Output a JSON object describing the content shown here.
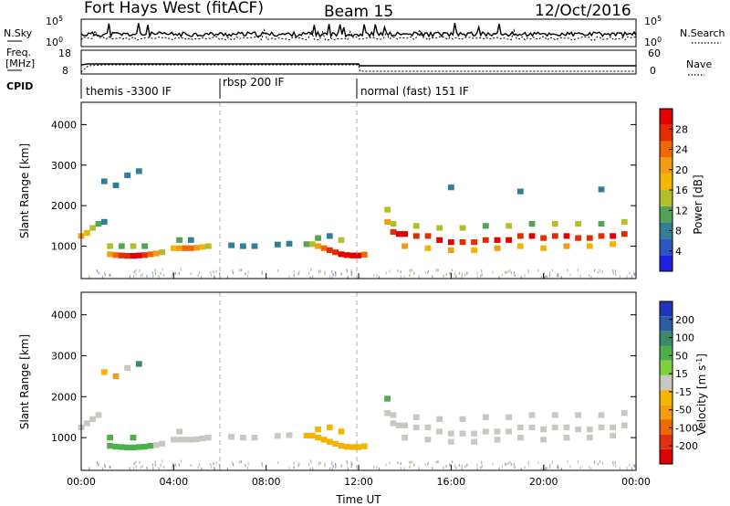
{
  "header": {
    "station": "Fort Hays West (fitACF)",
    "beam": "Beam 15",
    "date": "12/Oct/2016"
  },
  "strip_panels": {
    "nsky_label": "N.Sky",
    "nsearch_label": "N.Search",
    "nsky_ticks": [
      "10^5",
      "10^0"
    ],
    "nsearch_ticks": [
      "10^5",
      "10^0"
    ],
    "freq_label_1": "Freq.",
    "freq_label_2": "[MHz]",
    "freq_ticks": [
      "18",
      "8"
    ],
    "nave_label": "Nave",
    "nave_ticks": [
      "60",
      "0"
    ],
    "cpid_label": "CPID",
    "cpid_modes": [
      {
        "label": "themis -3300 IF",
        "start": "00:00",
        "end": "06:00"
      },
      {
        "label": "rbsp 200 IF",
        "start": "06:00",
        "end": "12:00"
      },
      {
        "label": "normal (fast) 151 IF",
        "start": "12:00",
        "end": "24:00"
      }
    ]
  },
  "chart_data": [
    {
      "type": "heatmap",
      "panel": "power",
      "xlabel": "Time UT",
      "ylabel": "Slant Range [km]",
      "colorbar_label": "Power [dB]",
      "x_ticks": [
        "00:00",
        "04:00",
        "08:00",
        "12:00",
        "16:00",
        "20:00",
        "00:00"
      ],
      "y_ticks": [
        "1000",
        "2000",
        "3000",
        "4000"
      ],
      "xlim": [
        0,
        24
      ],
      "ylim": [
        200,
        4550
      ],
      "colorbar_ticks": [
        "4",
        "8",
        "12",
        "16",
        "20",
        "24",
        "28"
      ],
      "colorbar_colors": [
        "#1f1fe0",
        "#2b57c0",
        "#2f7f98",
        "#54a255",
        "#b3bf2a",
        "#f5b400",
        "#f39c12",
        "#ee6a00",
        "#e52b00",
        "#e00000"
      ],
      "cells": [
        {
          "t": 0.0,
          "r": 1250,
          "v": 18
        },
        {
          "t": 0.25,
          "r": 1330,
          "v": 16
        },
        {
          "t": 0.5,
          "r": 1450,
          "v": 12
        },
        {
          "t": 0.75,
          "r": 1550,
          "v": 10
        },
        {
          "t": 1.0,
          "r": 1600,
          "v": 8
        },
        {
          "t": 1.25,
          "r": 800,
          "v": 20
        },
        {
          "t": 1.5,
          "r": 780,
          "v": 22
        },
        {
          "t": 1.75,
          "r": 770,
          "v": 24
        },
        {
          "t": 2.0,
          "r": 760,
          "v": 26
        },
        {
          "t": 2.25,
          "r": 760,
          "v": 28
        },
        {
          "t": 2.5,
          "r": 770,
          "v": 28
        },
        {
          "t": 2.75,
          "r": 780,
          "v": 26
        },
        {
          "t": 3.0,
          "r": 800,
          "v": 22
        },
        {
          "t": 3.25,
          "r": 820,
          "v": 18
        },
        {
          "t": 3.5,
          "r": 850,
          "v": 14
        },
        {
          "t": 1.25,
          "r": 1000,
          "v": 12
        },
        {
          "t": 1.75,
          "r": 1000,
          "v": 10
        },
        {
          "t": 2.25,
          "r": 1000,
          "v": 12
        },
        {
          "t": 2.75,
          "r": 1000,
          "v": 10
        },
        {
          "t": 1.0,
          "r": 2600,
          "v": 6
        },
        {
          "t": 1.5,
          "r": 2500,
          "v": 6
        },
        {
          "t": 2.0,
          "r": 2750,
          "v": 8
        },
        {
          "t": 2.5,
          "r": 2850,
          "v": 6
        },
        {
          "t": 4.0,
          "r": 950,
          "v": 16
        },
        {
          "t": 4.25,
          "r": 950,
          "v": 20
        },
        {
          "t": 4.5,
          "r": 950,
          "v": 22
        },
        {
          "t": 4.75,
          "r": 950,
          "v": 22
        },
        {
          "t": 5.0,
          "r": 960,
          "v": 20
        },
        {
          "t": 5.25,
          "r": 980,
          "v": 16
        },
        {
          "t": 5.5,
          "r": 1000,
          "v": 12
        },
        {
          "t": 4.25,
          "r": 1150,
          "v": 10
        },
        {
          "t": 4.75,
          "r": 1150,
          "v": 8
        },
        {
          "t": 6.5,
          "r": 1020,
          "v": 8
        },
        {
          "t": 7.0,
          "r": 1000,
          "v": 6
        },
        {
          "t": 7.5,
          "r": 1000,
          "v": 6
        },
        {
          "t": 8.5,
          "r": 1040,
          "v": 6
        },
        {
          "t": 9.0,
          "r": 1060,
          "v": 6
        },
        {
          "t": 9.75,
          "r": 1050,
          "v": 10
        },
        {
          "t": 10.0,
          "r": 1050,
          "v": 14
        },
        {
          "t": 10.25,
          "r": 1000,
          "v": 18
        },
        {
          "t": 10.5,
          "r": 950,
          "v": 22
        },
        {
          "t": 10.75,
          "r": 900,
          "v": 24
        },
        {
          "t": 11.0,
          "r": 850,
          "v": 26
        },
        {
          "t": 11.25,
          "r": 800,
          "v": 28
        },
        {
          "t": 11.5,
          "r": 780,
          "v": 30
        },
        {
          "t": 11.75,
          "r": 770,
          "v": 30
        },
        {
          "t": 12.0,
          "r": 770,
          "v": 28
        },
        {
          "t": 12.25,
          "r": 790,
          "v": 22
        },
        {
          "t": 10.25,
          "r": 1200,
          "v": 10
        },
        {
          "t": 10.75,
          "r": 1250,
          "v": 8
        },
        {
          "t": 11.25,
          "r": 1150,
          "v": 12
        },
        {
          "t": 13.25,
          "r": 1600,
          "v": 18
        },
        {
          "t": 13.25,
          "r": 1900,
          "v": 14
        },
        {
          "t": 13.5,
          "r": 1350,
          "v": 26
        },
        {
          "t": 13.75,
          "r": 1300,
          "v": 28
        },
        {
          "t": 14.0,
          "r": 1300,
          "v": 28
        },
        {
          "t": 14.5,
          "r": 1250,
          "v": 26
        },
        {
          "t": 15.0,
          "r": 1250,
          "v": 26
        },
        {
          "t": 15.5,
          "r": 1150,
          "v": 28
        },
        {
          "t": 16.0,
          "r": 1100,
          "v": 28
        },
        {
          "t": 16.5,
          "r": 1100,
          "v": 26
        },
        {
          "t": 17.0,
          "r": 1100,
          "v": 26
        },
        {
          "t": 17.5,
          "r": 1150,
          "v": 26
        },
        {
          "t": 18.0,
          "r": 1150,
          "v": 28
        },
        {
          "t": 18.5,
          "r": 1150,
          "v": 28
        },
        {
          "t": 19.0,
          "r": 1250,
          "v": 26
        },
        {
          "t": 19.5,
          "r": 1250,
          "v": 28
        },
        {
          "t": 20.0,
          "r": 1200,
          "v": 26
        },
        {
          "t": 20.5,
          "r": 1250,
          "v": 26
        },
        {
          "t": 21.0,
          "r": 1250,
          "v": 28
        },
        {
          "t": 21.5,
          "r": 1200,
          "v": 26
        },
        {
          "t": 22.0,
          "r": 1200,
          "v": 26
        },
        {
          "t": 22.5,
          "r": 1250,
          "v": 26
        },
        {
          "t": 23.0,
          "r": 1250,
          "v": 28
        },
        {
          "t": 23.5,
          "r": 1300,
          "v": 26
        },
        {
          "t": 13.5,
          "r": 1550,
          "v": 14
        },
        {
          "t": 14.5,
          "r": 1500,
          "v": 12
        },
        {
          "t": 15.5,
          "r": 1450,
          "v": 12
        },
        {
          "t": 16.5,
          "r": 1450,
          "v": 12
        },
        {
          "t": 17.5,
          "r": 1500,
          "v": 10
        },
        {
          "t": 18.5,
          "r": 1500,
          "v": 12
        },
        {
          "t": 19.5,
          "r": 1550,
          "v": 10
        },
        {
          "t": 20.5,
          "r": 1550,
          "v": 12
        },
        {
          "t": 21.5,
          "r": 1550,
          "v": 12
        },
        {
          "t": 22.5,
          "r": 1550,
          "v": 10
        },
        {
          "t": 23.5,
          "r": 1600,
          "v": 12
        },
        {
          "t": 14.0,
          "r": 1000,
          "v": 18
        },
        {
          "t": 15.0,
          "r": 950,
          "v": 16
        },
        {
          "t": 16.0,
          "r": 900,
          "v": 18
        },
        {
          "t": 17.0,
          "r": 900,
          "v": 16
        },
        {
          "t": 18.0,
          "r": 950,
          "v": 18
        },
        {
          "t": 19.0,
          "r": 1000,
          "v": 16
        },
        {
          "t": 20.0,
          "r": 950,
          "v": 16
        },
        {
          "t": 21.0,
          "r": 1000,
          "v": 18
        },
        {
          "t": 22.0,
          "r": 1000,
          "v": 16
        },
        {
          "t": 23.0,
          "r": 1050,
          "v": 16
        },
        {
          "t": 16.0,
          "r": 2450,
          "v": 6
        },
        {
          "t": 19.0,
          "r": 2350,
          "v": 6
        },
        {
          "t": 22.5,
          "r": 2400,
          "v": 6
        }
      ]
    },
    {
      "type": "heatmap",
      "panel": "velocity",
      "xlabel": "Time UT",
      "ylabel": "Slant Range [km]",
      "colorbar_label": "Velocity [m s^-1]",
      "x_ticks": [
        "00:00",
        "04:00",
        "08:00",
        "12:00",
        "16:00",
        "20:00",
        "00:00"
      ],
      "y_ticks": [
        "1000",
        "2000",
        "3000",
        "4000"
      ],
      "xlim": [
        0,
        24
      ],
      "ylim": [
        200,
        4550
      ],
      "colorbar_ticks": [
        "200",
        "100",
        "50",
        "15",
        "-15",
        "-50",
        "-100",
        "-200"
      ],
      "colorbar_colors": [
        "#2233bb",
        "#2d5ca6",
        "#3a8a6a",
        "#4bb04b",
        "#7dd13b",
        "#c8c8c0",
        "#f5b400",
        "#f39c12",
        "#ee6a00",
        "#e03010",
        "#dd0000"
      ],
      "cells": [
        {
          "t": 0.0,
          "r": 1250,
          "v": 0
        },
        {
          "t": 0.25,
          "r": 1350,
          "v": 0
        },
        {
          "t": 0.5,
          "r": 1450,
          "v": 0
        },
        {
          "t": 0.75,
          "r": 1550,
          "v": 0
        },
        {
          "t": 1.25,
          "r": 800,
          "v": 30
        },
        {
          "t": 1.5,
          "r": 780,
          "v": 30
        },
        {
          "t": 1.75,
          "r": 770,
          "v": 35
        },
        {
          "t": 2.0,
          "r": 760,
          "v": 30
        },
        {
          "t": 2.25,
          "r": 760,
          "v": 40
        },
        {
          "t": 2.5,
          "r": 770,
          "v": 30
        },
        {
          "t": 2.75,
          "r": 780,
          "v": 35
        },
        {
          "t": 3.0,
          "r": 800,
          "v": 30
        },
        {
          "t": 3.25,
          "r": 820,
          "v": 0
        },
        {
          "t": 3.5,
          "r": 850,
          "v": 0
        },
        {
          "t": 1.25,
          "r": 1000,
          "v": 30
        },
        {
          "t": 2.25,
          "r": 1000,
          "v": 30
        },
        {
          "t": 1.0,
          "r": 2600,
          "v": -40
        },
        {
          "t": 1.5,
          "r": 2500,
          "v": -60
        },
        {
          "t": 2.0,
          "r": 2700,
          "v": 0
        },
        {
          "t": 2.5,
          "r": 2800,
          "v": 60
        },
        {
          "t": 4.0,
          "r": 950,
          "v": 0
        },
        {
          "t": 4.25,
          "r": 950,
          "v": 0
        },
        {
          "t": 4.5,
          "r": 950,
          "v": 0
        },
        {
          "t": 4.75,
          "r": 950,
          "v": 0
        },
        {
          "t": 5.0,
          "r": 960,
          "v": 0
        },
        {
          "t": 5.25,
          "r": 980,
          "v": 0
        },
        {
          "t": 5.5,
          "r": 1000,
          "v": 0
        },
        {
          "t": 4.25,
          "r": 1150,
          "v": 0
        },
        {
          "t": 6.5,
          "r": 1020,
          "v": 0
        },
        {
          "t": 7.0,
          "r": 1000,
          "v": 0
        },
        {
          "t": 7.5,
          "r": 1000,
          "v": 0
        },
        {
          "t": 8.5,
          "r": 1040,
          "v": 0
        },
        {
          "t": 9.0,
          "r": 1060,
          "v": 0
        },
        {
          "t": 9.75,
          "r": 1050,
          "v": -30
        },
        {
          "t": 10.0,
          "r": 1050,
          "v": -30
        },
        {
          "t": 10.25,
          "r": 1000,
          "v": -30
        },
        {
          "t": 10.5,
          "r": 950,
          "v": -35
        },
        {
          "t": 10.75,
          "r": 900,
          "v": -30
        },
        {
          "t": 11.0,
          "r": 850,
          "v": -30
        },
        {
          "t": 11.25,
          "r": 800,
          "v": -30
        },
        {
          "t": 11.5,
          "r": 780,
          "v": -35
        },
        {
          "t": 11.75,
          "r": 770,
          "v": -30
        },
        {
          "t": 12.0,
          "r": 770,
          "v": -30
        },
        {
          "t": 12.25,
          "r": 790,
          "v": -30
        },
        {
          "t": 10.25,
          "r": 1200,
          "v": -30
        },
        {
          "t": 10.75,
          "r": 1250,
          "v": -30
        },
        {
          "t": 11.25,
          "r": 1150,
          "v": -30
        },
        {
          "t": 13.25,
          "r": 1600,
          "v": 0
        },
        {
          "t": 13.25,
          "r": 1950,
          "v": 30
        },
        {
          "t": 13.5,
          "r": 1350,
          "v": 0
        },
        {
          "t": 13.75,
          "r": 1300,
          "v": 0
        },
        {
          "t": 14.0,
          "r": 1300,
          "v": 0
        },
        {
          "t": 14.5,
          "r": 1250,
          "v": 0
        },
        {
          "t": 15.0,
          "r": 1250,
          "v": 0
        },
        {
          "t": 15.5,
          "r": 1150,
          "v": 0
        },
        {
          "t": 16.0,
          "r": 1100,
          "v": 0
        },
        {
          "t": 16.5,
          "r": 1100,
          "v": 0
        },
        {
          "t": 17.0,
          "r": 1100,
          "v": 0
        },
        {
          "t": 17.5,
          "r": 1150,
          "v": 0
        },
        {
          "t": 18.0,
          "r": 1150,
          "v": 0
        },
        {
          "t": 18.5,
          "r": 1150,
          "v": 0
        },
        {
          "t": 19.0,
          "r": 1250,
          "v": 0
        },
        {
          "t": 19.5,
          "r": 1250,
          "v": 0
        },
        {
          "t": 20.0,
          "r": 1200,
          "v": 0
        },
        {
          "t": 20.5,
          "r": 1250,
          "v": 0
        },
        {
          "t": 21.0,
          "r": 1250,
          "v": 0
        },
        {
          "t": 21.5,
          "r": 1200,
          "v": 0
        },
        {
          "t": 22.0,
          "r": 1200,
          "v": 0
        },
        {
          "t": 22.5,
          "r": 1250,
          "v": 0
        },
        {
          "t": 23.0,
          "r": 1250,
          "v": 0
        },
        {
          "t": 23.5,
          "r": 1300,
          "v": 0
        },
        {
          "t": 13.5,
          "r": 1550,
          "v": 0
        },
        {
          "t": 14.5,
          "r": 1500,
          "v": 0
        },
        {
          "t": 15.5,
          "r": 1450,
          "v": 0
        },
        {
          "t": 16.5,
          "r": 1450,
          "v": 0
        },
        {
          "t": 17.5,
          "r": 1500,
          "v": 0
        },
        {
          "t": 18.5,
          "r": 1500,
          "v": 0
        },
        {
          "t": 19.5,
          "r": 1550,
          "v": 0
        },
        {
          "t": 20.5,
          "r": 1550,
          "v": 0
        },
        {
          "t": 21.5,
          "r": 1550,
          "v": 0
        },
        {
          "t": 22.5,
          "r": 1550,
          "v": 0
        },
        {
          "t": 23.5,
          "r": 1600,
          "v": 0
        },
        {
          "t": 14.0,
          "r": 1000,
          "v": 0
        },
        {
          "t": 15.0,
          "r": 950,
          "v": 0
        },
        {
          "t": 16.0,
          "r": 900,
          "v": 0
        },
        {
          "t": 17.0,
          "r": 900,
          "v": 0
        },
        {
          "t": 18.0,
          "r": 950,
          "v": 0
        },
        {
          "t": 19.0,
          "r": 1000,
          "v": 0
        },
        {
          "t": 20.0,
          "r": 950,
          "v": 0
        },
        {
          "t": 21.0,
          "r": 1000,
          "v": 0
        },
        {
          "t": 22.0,
          "r": 1000,
          "v": 0
        },
        {
          "t": 23.0,
          "r": 1050,
          "v": 0
        }
      ]
    }
  ]
}
